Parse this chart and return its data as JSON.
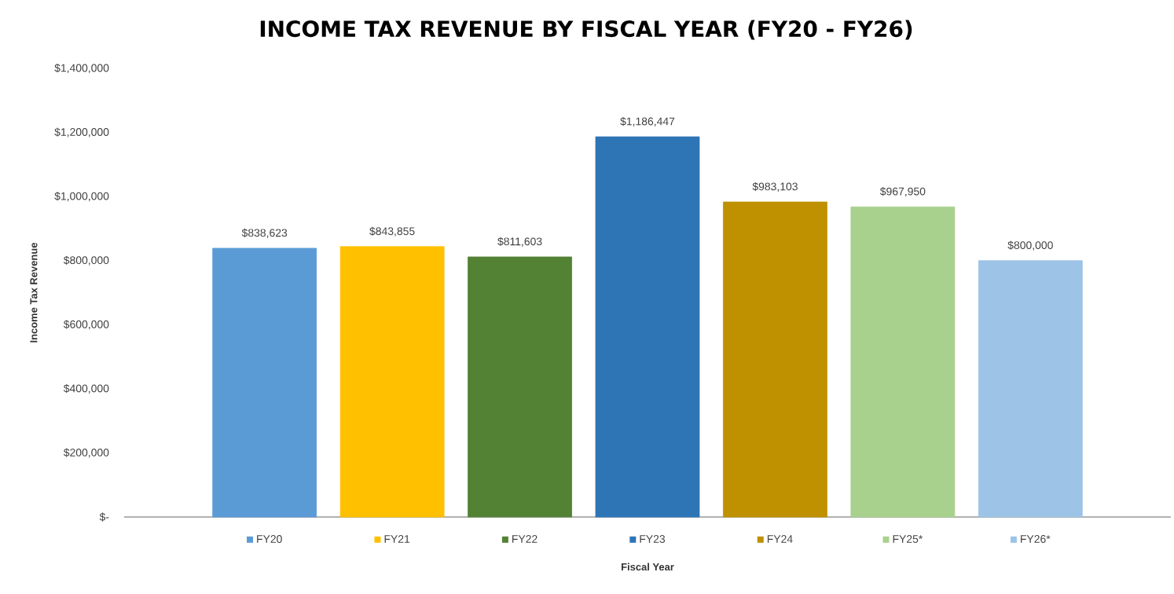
{
  "chart_data": {
    "type": "bar",
    "title": "INCOME TAX REVENUE BY FISCAL YEAR (FY20 - FY26)",
    "xlabel": "Fiscal Year",
    "ylabel": "Income Tax Revenue",
    "categories": [
      "FY20",
      "FY21",
      "FY22",
      "FY23",
      "FY24",
      "FY25*",
      "FY26*"
    ],
    "values": [
      838623,
      843855,
      811603,
      1186447,
      983103,
      967950,
      800000
    ],
    "value_labels": [
      "$838,623",
      "$843,855",
      "$811,603",
      "$1,186,447",
      "$983,103",
      "$967,950",
      "$800,000"
    ],
    "colors": [
      "#5b9bd5",
      "#ffc000",
      "#548235",
      "#2e75b6",
      "#bf9000",
      "#a9d18e",
      "#9dc3e6"
    ],
    "ylim": [
      0,
      1400000
    ],
    "yticks": [
      {
        "value": 0,
        "label": "$-"
      },
      {
        "value": 200000,
        "label": "$200,000"
      },
      {
        "value": 400000,
        "label": "$400,000"
      },
      {
        "value": 600000,
        "label": "$600,000"
      },
      {
        "value": 800000,
        "label": "$800,000"
      },
      {
        "value": 1000000,
        "label": "$1,000,000"
      },
      {
        "value": 1200000,
        "label": "$1,200,000"
      },
      {
        "value": 1400000,
        "label": "$1,400,000"
      }
    ],
    "grid": false
  }
}
